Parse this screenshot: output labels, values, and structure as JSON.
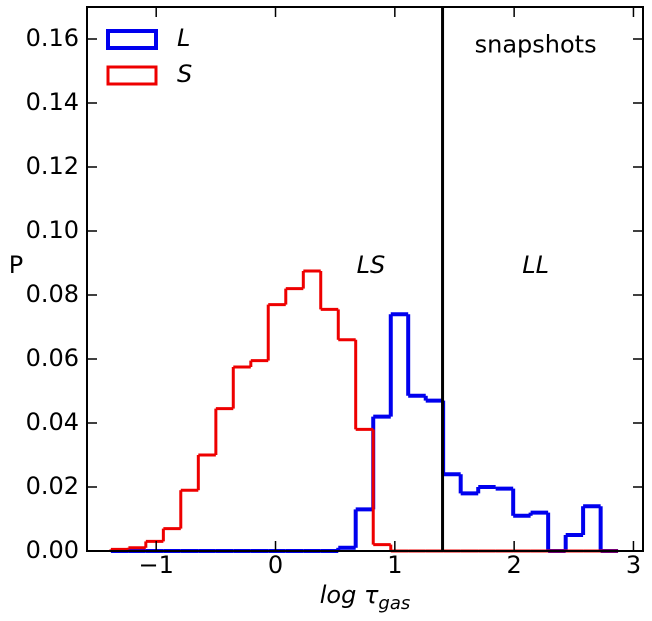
{
  "chart_data": {
    "type": "histogram",
    "xlabel": "log τ",
    "xlabel_sub": "gas",
    "ylabel": "P",
    "bins": [
      -1.38,
      -1.233,
      -1.087,
      -0.94,
      -0.794,
      -0.647,
      -0.5,
      -0.354,
      -0.207,
      -0.061,
      0.086,
      0.233,
      0.379,
      0.526,
      0.672,
      0.819,
      0.966,
      1.112,
      1.259,
      1.405,
      1.552,
      1.699,
      1.845,
      1.992,
      2.138,
      2.285,
      2.432,
      2.578,
      2.725,
      2.871
    ],
    "series": [
      {
        "name": "L",
        "color": "#0000ee",
        "values": [
          0,
          0,
          0,
          0,
          0,
          0,
          0,
          0,
          0,
          0,
          0,
          0,
          0,
          0.001,
          0.013,
          0.042,
          0.074,
          0.0485,
          0.047,
          0.024,
          0.018,
          0.02,
          0.0195,
          0.011,
          0.012,
          0,
          0.005,
          0.014,
          0
        ]
      },
      {
        "name": "S",
        "color": "#ee0000",
        "values": [
          0.0005,
          0.001,
          0.003,
          0.007,
          0.019,
          0.03,
          0.0445,
          0.0575,
          0.0595,
          0.077,
          0.082,
          0.0875,
          0.0755,
          0.066,
          0.038,
          0.002,
          0,
          0,
          0,
          0,
          0,
          0,
          0,
          0,
          0,
          0,
          0,
          0,
          0
        ]
      }
    ],
    "xlim": [
      -1.58,
      3.08
    ],
    "ylim": [
      0,
      0.17
    ],
    "xticks": [
      {
        "value": -1,
        "label": "−1"
      },
      0,
      1,
      2,
      3
    ],
    "yticks": [
      {
        "value": 0,
        "label": "0.00"
      },
      {
        "value": 0.02,
        "label": "0.02"
      },
      {
        "value": 0.04,
        "label": "0.04"
      },
      {
        "value": 0.06,
        "label": "0.06"
      },
      {
        "value": 0.08,
        "label": "0.08"
      },
      {
        "value": 0.1,
        "label": "0.10"
      },
      {
        "value": 0.12,
        "label": "0.12"
      },
      {
        "value": 0.14,
        "label": "0.14"
      },
      {
        "value": 0.16,
        "label": "0.16"
      }
    ],
    "vline": 1.4,
    "legend": "upper left",
    "annotations": [
      {
        "text": "LS",
        "x": 0.8,
        "y": 0.089,
        "style": "large"
      },
      {
        "text": "LL",
        "x": 2.18,
        "y": 0.089,
        "style": "large"
      },
      {
        "text": "snapshots",
        "x": 2.18,
        "y": 0.158,
        "style": "normal"
      }
    ]
  }
}
